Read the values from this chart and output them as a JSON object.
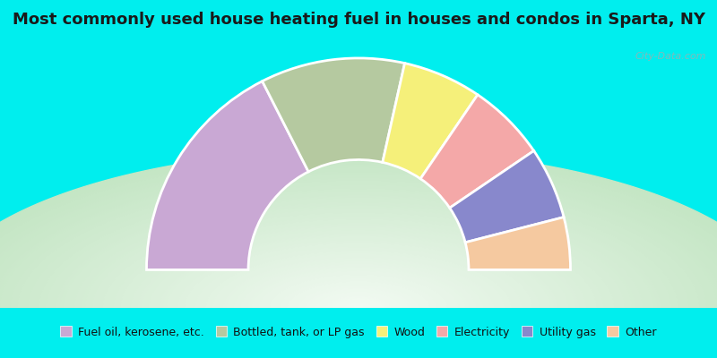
{
  "title": "Most commonly used house heating fuel in houses and condos in Sparta, NY",
  "bg_cyan": "#00EEEE",
  "chart_bg_white": "#f5fbf5",
  "chart_bg_green": "#b8ddb8",
  "segments": [
    {
      "label": "Fuel oil, kerosene, etc.",
      "value": 35,
      "color": "#c9a8d4"
    },
    {
      "label": "Bottled, tank, or LP gas",
      "value": 22,
      "color": "#b5c9a0"
    },
    {
      "label": "Wood",
      "value": 12,
      "color": "#f5f07a"
    },
    {
      "label": "Electricity",
      "value": 12,
      "color": "#f4a8a8"
    },
    {
      "label": "Utility gas",
      "value": 11,
      "color": "#8888cc"
    },
    {
      "label": "Other",
      "value": 8,
      "color": "#f5c9a0"
    }
  ],
  "watermark": "City-Data.com",
  "title_fontsize": 13,
  "legend_fontsize": 9,
  "top_bar_height": 0.115,
  "bottom_bar_height": 0.14,
  "r_outer": 1.0,
  "r_inner": 0.52
}
